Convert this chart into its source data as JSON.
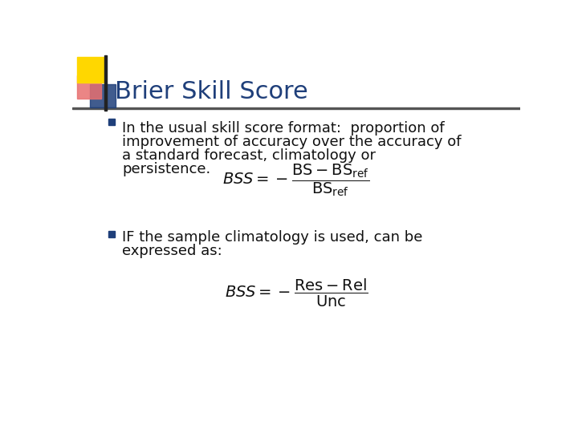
{
  "title": "Brier Skill Score",
  "title_color": "#1F3F7A",
  "title_fontsize": 22,
  "background_color": "#FFFFFF",
  "text_color": "#111111",
  "bullet_color": "#1F3F7A",
  "bullet1_lines": [
    "In the usual skill score format:  proportion of",
    "improvement of accuracy over the accuracy of",
    "a standard forecast, climatology or",
    "persistence."
  ],
  "formula1": "$\\mathit{BSS} = -\\dfrac{\\mathrm{BS} - \\mathrm{BS}_{\\mathrm{ref}}}{\\mathrm{BS}_{\\mathrm{ref}}}$",
  "bullet2_lines": [
    "IF the sample climatology is used, can be",
    "expressed as:"
  ],
  "formula2": "$\\mathit{BSS} = -\\dfrac{\\mathrm{Res} - \\mathrm{Rel}}{\\mathrm{Unc}}$",
  "header_line_color": "#555555",
  "text_fontsize": 13,
  "formula_fontsize": 13,
  "corner_square_yellow": "#FFD700",
  "corner_square_red": "#E87070",
  "corner_square_blue": "#1F3F7A"
}
